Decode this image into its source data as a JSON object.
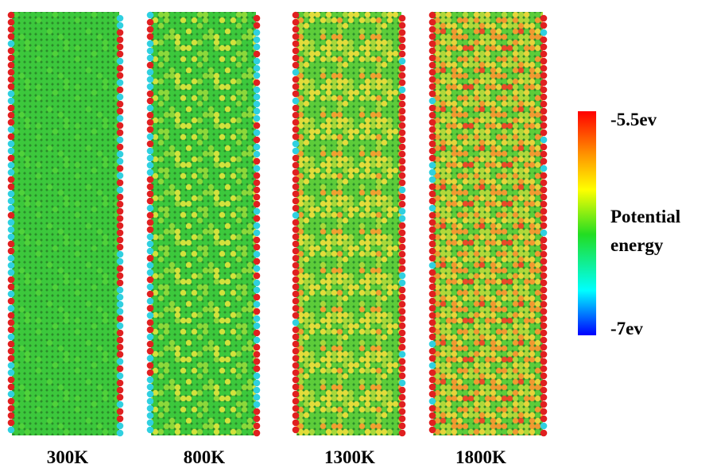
{
  "panels": [
    {
      "label": "300K"
    },
    {
      "label": "800K"
    },
    {
      "label": "1300K"
    },
    {
      "label": "1800K"
    }
  ],
  "colorbar": {
    "top_label": "-5.5ev",
    "title_lines": [
      "Potential",
      "energy"
    ],
    "bottom_label": "-7ev"
  }
}
